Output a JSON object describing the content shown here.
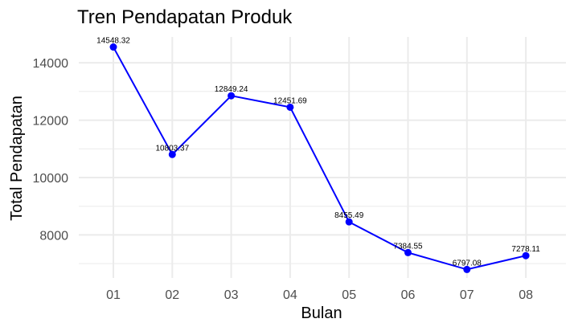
{
  "chart_data": {
    "type": "line",
    "title": "Tren Pendapatan Produk",
    "xlabel": "Bulan",
    "ylabel": "Total Pendapatan",
    "categories": [
      "01",
      "02",
      "03",
      "04",
      "05",
      "06",
      "07",
      "08"
    ],
    "values": [
      14548.32,
      10803.37,
      12849.24,
      12451.69,
      8455.49,
      7384.55,
      6797.08,
      7278.11
    ],
    "value_labels": [
      "14548.32",
      "10803.37",
      "12849.24",
      "12451.69",
      "8455.49",
      "7384.55",
      "6797.08",
      "7278.11"
    ],
    "yticks": [
      8000,
      10000,
      12000,
      14000
    ],
    "yticks_labels": [
      "8000",
      "10000",
      "12000",
      "14000"
    ],
    "ylim": [
      6500,
      14900
    ],
    "grid": true,
    "legend": "none",
    "colors": {
      "line": "#0000ff",
      "point": "#0000ff",
      "grid": "#ebebeb"
    }
  }
}
